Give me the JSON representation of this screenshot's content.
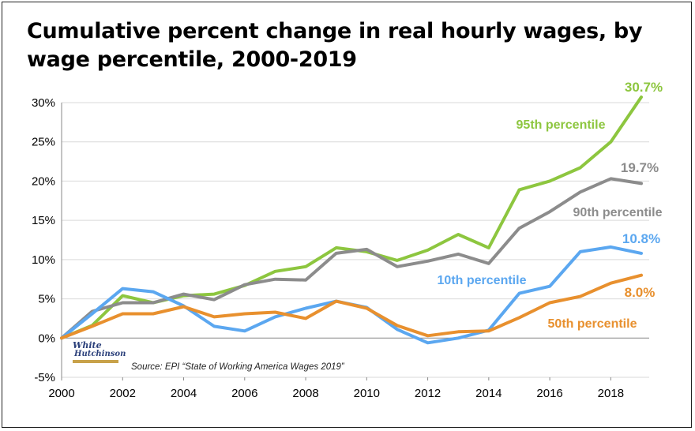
{
  "title": "Cumulative percent change in real hourly wages, by wage percentile, 2000-2019",
  "source": "Source: EPI “State of Working America Wages 2019”",
  "logo": {
    "line1": "White",
    "line2": "Hutchinson"
  },
  "chart_data": {
    "type": "line",
    "title": "Cumulative percent change in real hourly wages, by wage percentile, 2000-2019",
    "xlabel": "",
    "ylabel": "",
    "ylim": [
      -5,
      30
    ],
    "xlim": [
      2000,
      2019
    ],
    "x_ticks": [
      "2000",
      "2002",
      "2004",
      "2006",
      "2008",
      "2010",
      "2012",
      "2014",
      "2016",
      "2018"
    ],
    "y_ticks": [
      "-5%",
      "0%",
      "5%",
      "10%",
      "15%",
      "20%",
      "25%",
      "30%"
    ],
    "grid": "horizontal",
    "x": [
      2000,
      2001,
      2002,
      2003,
      2004,
      2005,
      2006,
      2007,
      2008,
      2009,
      2010,
      2011,
      2012,
      2013,
      2014,
      2015,
      2016,
      2017,
      2018,
      2019
    ],
    "series": [
      {
        "name": "95th percentile",
        "color": "#8dc63f",
        "end_label": "30.7%",
        "values": [
          0,
          1.6,
          5.4,
          4.5,
          5.4,
          5.6,
          6.7,
          8.5,
          9.1,
          11.5,
          11.0,
          9.9,
          11.2,
          13.2,
          11.5,
          18.9,
          20.0,
          21.7,
          25.0,
          30.7
        ]
      },
      {
        "name": "90th percentile",
        "color": "#8c8c8c",
        "end_label": "19.7%",
        "values": [
          0,
          3.4,
          4.5,
          4.5,
          5.6,
          4.9,
          6.8,
          7.5,
          7.4,
          10.8,
          11.3,
          9.1,
          9.8,
          10.7,
          9.5,
          14.0,
          16.1,
          18.6,
          20.3,
          19.7
        ]
      },
      {
        "name": "10th percentile",
        "color": "#5ba7f0",
        "end_label": "10.8%",
        "values": [
          0,
          3.1,
          6.3,
          5.9,
          4.1,
          1.5,
          0.9,
          2.7,
          3.8,
          4.7,
          3.9,
          1.1,
          -0.6,
          0.0,
          1.0,
          5.7,
          6.6,
          11.0,
          11.6,
          10.8
        ]
      },
      {
        "name": "50th percentile",
        "color": "#e8902e",
        "end_label": "8.0%",
        "values": [
          0,
          1.5,
          3.1,
          3.1,
          4.0,
          2.7,
          3.1,
          3.3,
          2.5,
          4.7,
          3.8,
          1.6,
          0.3,
          0.8,
          0.9,
          2.6,
          4.5,
          5.3,
          7.0,
          8.0
        ]
      }
    ]
  }
}
